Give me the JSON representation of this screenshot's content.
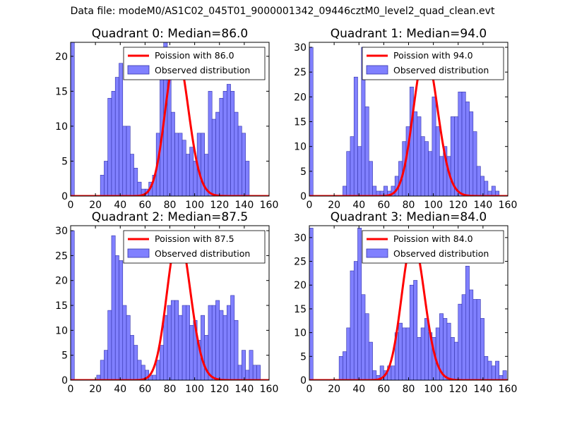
{
  "figure_title": "Data file: modeM0/AS1C02_045T01_9000001342_09446cztM0_level2_quad_clean.evt",
  "colors": {
    "bar_fill": "#8080ff",
    "bar_edge": "#3333aa",
    "poisson_line": "#ff0000"
  },
  "legend_labels": {
    "observed": "Observed distribution"
  },
  "chart_data": [
    {
      "type": "bar",
      "title": "Quadrant 0: Median=86.0",
      "poisson_label": "Poission with 86.0",
      "median": 86.0,
      "bin_width": 3.0,
      "xlim": [
        0,
        160
      ],
      "ylim": [
        0,
        22
      ],
      "xticks": [
        0,
        20,
        40,
        60,
        80,
        100,
        120,
        140,
        160
      ],
      "yticks": [
        0,
        5,
        10,
        15,
        20
      ],
      "bins_x": [
        0,
        24,
        27,
        30,
        33,
        36,
        39,
        42,
        45,
        48,
        51,
        54,
        57,
        60,
        63,
        66,
        69,
        72,
        75,
        78,
        81,
        84,
        87,
        90,
        93,
        96,
        99,
        102,
        105,
        108,
        111,
        114,
        117,
        120,
        123,
        126,
        129,
        132,
        135,
        138,
        141
      ],
      "counts": [
        22,
        3,
        5,
        14,
        15,
        17,
        19,
        10,
        10,
        6,
        4,
        2,
        1,
        1,
        2,
        3,
        9,
        19,
        23,
        19,
        12,
        9,
        9,
        8,
        6,
        7,
        5,
        9,
        9,
        6,
        15,
        11,
        12,
        14,
        15,
        16,
        15,
        12,
        10,
        9,
        5
      ],
      "poisson_peak": 20.5
    },
    {
      "type": "bar",
      "title": "Quadrant 1: Median=94.0",
      "poisson_label": "Poission with 94.0",
      "median": 94.0,
      "bin_width": 3.0,
      "xlim": [
        0,
        160
      ],
      "ylim": [
        0,
        31
      ],
      "xticks": [
        0,
        20,
        40,
        60,
        80,
        100,
        120,
        140,
        160
      ],
      "yticks": [
        0,
        5,
        10,
        15,
        20,
        25,
        30
      ],
      "bins_x": [
        0,
        27,
        30,
        33,
        36,
        39,
        42,
        45,
        48,
        51,
        54,
        57,
        60,
        63,
        66,
        69,
        72,
        75,
        78,
        81,
        84,
        87,
        90,
        93,
        96,
        99,
        102,
        105,
        108,
        111,
        114,
        117,
        120,
        123,
        126,
        129,
        132,
        135,
        138,
        141,
        144,
        147,
        150
      ],
      "counts": [
        30,
        2,
        9,
        12,
        24,
        10,
        30,
        18,
        7,
        2,
        1,
        1,
        2,
        1,
        2,
        4,
        7,
        11,
        14,
        22,
        17,
        16,
        12,
        11,
        9,
        20,
        14,
        8,
        10,
        8,
        16,
        16,
        21,
        21,
        19,
        17,
        13,
        6,
        4,
        3,
        1,
        2,
        1
      ],
      "poisson_peak": 29.0
    },
    {
      "type": "bar",
      "title": "Quadrant 2: Median=87.5",
      "poisson_label": "Poission with 87.5",
      "median": 87.5,
      "bin_width": 3.0,
      "xlim": [
        0,
        160
      ],
      "ylim": [
        0,
        31
      ],
      "xticks": [
        0,
        20,
        40,
        60,
        80,
        100,
        120,
        140,
        160
      ],
      "yticks": [
        0,
        5,
        10,
        15,
        20,
        25,
        30
      ],
      "bins_x": [
        0,
        21,
        24,
        27,
        30,
        33,
        36,
        39,
        42,
        45,
        48,
        51,
        54,
        57,
        60,
        63,
        66,
        69,
        72,
        75,
        78,
        81,
        84,
        87,
        90,
        93,
        96,
        99,
        102,
        105,
        108,
        111,
        114,
        117,
        120,
        123,
        126,
        129,
        132,
        135,
        138,
        141,
        144,
        147,
        150
      ],
      "counts": [
        30,
        1,
        4,
        6,
        14,
        29,
        25,
        24,
        15,
        13,
        9,
        7,
        4,
        3,
        2,
        1,
        1,
        4,
        7,
        13,
        15,
        16,
        16,
        13,
        15,
        15,
        11,
        12,
        8,
        13,
        9,
        15,
        15,
        16,
        14,
        13,
        15,
        17,
        12,
        3,
        6,
        2,
        6,
        3,
        3
      ],
      "poisson_peak": 29.5
    },
    {
      "type": "bar",
      "title": "Quadrant 3: Median=84.0",
      "poisson_label": "Poission with 84.0",
      "median": 84.0,
      "bin_width": 3.0,
      "xlim": [
        0,
        160
      ],
      "ylim": [
        0,
        32.5
      ],
      "xticks": [
        0,
        20,
        40,
        60,
        80,
        100,
        120,
        140,
        160
      ],
      "yticks": [
        0,
        5,
        10,
        15,
        20,
        25,
        30
      ],
      "bins_x": [
        0,
        24,
        27,
        30,
        33,
        36,
        39,
        42,
        45,
        48,
        51,
        54,
        57,
        60,
        63,
        66,
        69,
        72,
        75,
        78,
        81,
        84,
        87,
        90,
        93,
        96,
        99,
        102,
        105,
        108,
        111,
        114,
        117,
        120,
        123,
        126,
        129,
        132,
        135,
        138,
        141,
        144,
        147,
        150,
        153,
        156
      ],
      "counts": [
        32,
        5,
        6,
        11,
        23,
        25,
        32,
        18,
        14,
        8,
        2,
        1,
        3,
        2,
        3,
        3,
        10,
        12,
        11,
        11,
        20,
        21,
        9,
        11,
        13,
        10,
        9,
        11,
        14,
        13,
        12,
        9,
        8,
        16,
        18,
        24,
        19,
        17,
        17,
        13,
        5,
        4,
        3,
        4,
        1,
        2
      ],
      "poisson_peak": 29.5
    }
  ]
}
